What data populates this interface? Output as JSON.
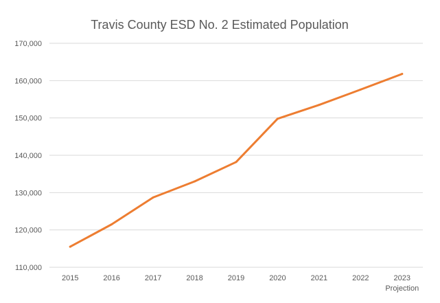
{
  "chart_data": {
    "type": "line",
    "title": "Travis County ESD No. 2 Estimated Population",
    "xlabel": "",
    "ylabel": "",
    "categories": [
      "2015",
      "2016",
      "2017",
      "2018",
      "2019",
      "2020",
      "2021",
      "2022",
      "2023"
    ],
    "category_sublabels": [
      "",
      "",
      "",
      "",
      "",
      "",
      "",
      "",
      "Projection"
    ],
    "series": [
      {
        "values": [
          115500,
          121500,
          128700,
          133000,
          138200,
          149800,
          153500,
          157600,
          161800
        ],
        "color": "#ED7D31"
      }
    ],
    "ylim": [
      110000,
      170000
    ],
    "yticks": [
      110000,
      120000,
      130000,
      140000,
      150000,
      160000,
      170000
    ],
    "ytick_labels": [
      "110,000",
      "120,000",
      "130,000",
      "140,000",
      "150,000",
      "160,000",
      "170,000"
    ],
    "grid": true,
    "legend": "none",
    "colors": {
      "gridline": "#D9D9D9",
      "text": "#595959",
      "title": "#595959"
    }
  }
}
